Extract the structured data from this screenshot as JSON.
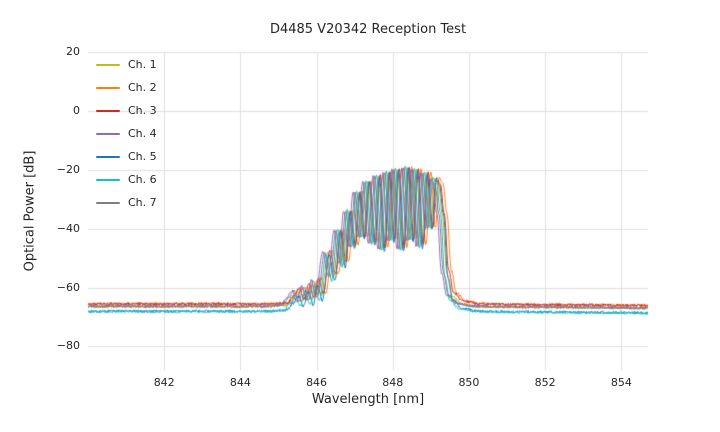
{
  "chart_data": {
    "type": "line",
    "title": "D4485 V20342 Reception Test",
    "xlabel": "Wavelength [nm]",
    "ylabel": "Optical Power [dB]",
    "xlim": [
      840.0,
      854.7
    ],
    "ylim": [
      -88,
      20
    ],
    "xticks": [
      842,
      844,
      846,
      848,
      850,
      852,
      854
    ],
    "yticks": [
      20,
      0,
      -20,
      -40,
      -60,
      -80
    ],
    "grid": true,
    "legend_position": "upper-left",
    "noise_floor_db": -66.5,
    "noise_amplitude_db": 0.45,
    "base_spectrum": [
      [
        840.0,
        -66.3
      ],
      [
        841.0,
        -66.2
      ],
      [
        842.0,
        -66.3
      ],
      [
        843.0,
        -66.2
      ],
      [
        844.0,
        -66.3
      ],
      [
        844.8,
        -66.2
      ],
      [
        845.2,
        -65.8
      ],
      [
        845.35,
        -63.5
      ],
      [
        845.5,
        -61.0
      ],
      [
        845.62,
        -64.5
      ],
      [
        845.75,
        -59.5
      ],
      [
        845.88,
        -64.0
      ],
      [
        846.0,
        -57.5
      ],
      [
        846.12,
        -62.5
      ],
      [
        846.3,
        -48.0
      ],
      [
        846.45,
        -56.0
      ],
      [
        846.6,
        -40.5
      ],
      [
        846.72,
        -52.0
      ],
      [
        846.85,
        -34.0
      ],
      [
        846.97,
        -46.0
      ],
      [
        847.1,
        -27.5
      ],
      [
        847.22,
        -43.0
      ],
      [
        847.35,
        -24.0
      ],
      [
        847.5,
        -45.0
      ],
      [
        847.62,
        -22.0
      ],
      [
        847.75,
        -47.0
      ],
      [
        847.88,
        -20.8
      ],
      [
        848.0,
        -44.0
      ],
      [
        848.12,
        -19.8
      ],
      [
        848.25,
        -47.0
      ],
      [
        848.38,
        -19.2
      ],
      [
        848.5,
        -44.0
      ],
      [
        848.62,
        -19.8
      ],
      [
        848.75,
        -46.0
      ],
      [
        848.88,
        -21.0
      ],
      [
        849.0,
        -40.0
      ],
      [
        849.1,
        -23.0
      ],
      [
        849.2,
        -25.0
      ],
      [
        849.3,
        -35.0
      ],
      [
        849.42,
        -55.0
      ],
      [
        849.55,
        -62.5
      ],
      [
        849.8,
        -65.3
      ],
      [
        850.2,
        -66.2
      ],
      [
        851.0,
        -66.4
      ],
      [
        852.0,
        -66.5
      ],
      [
        853.0,
        -66.6
      ],
      [
        854.0,
        -66.7
      ],
      [
        854.7,
        -66.8
      ]
    ],
    "series": [
      {
        "name": "Ch. 1",
        "color": "#bcbd22",
        "x_offset": 0.0,
        "y_offset": 0.0,
        "floor_offset": -0.2
      },
      {
        "name": "Ch. 2",
        "color": "#ff7f0e",
        "x_offset": 0.12,
        "y_offset": 0.3,
        "floor_offset": 0.4
      },
      {
        "name": "Ch. 3",
        "color": "#d62728",
        "x_offset": 0.05,
        "y_offset": 0.2,
        "floor_offset": 0.5
      },
      {
        "name": "Ch. 4",
        "color": "#9467bd",
        "x_offset": -0.14,
        "y_offset": 0.0,
        "floor_offset": 0.0
      },
      {
        "name": "Ch. 5",
        "color": "#1f77b4",
        "x_offset": 0.03,
        "y_offset": -0.2,
        "floor_offset": -1.6
      },
      {
        "name": "Ch. 6",
        "color": "#17becf",
        "x_offset": -0.05,
        "y_offset": 0.4,
        "floor_offset": -2.3
      },
      {
        "name": "Ch. 7",
        "color": "#7f7f7f",
        "x_offset": -0.09,
        "y_offset": -0.1,
        "floor_offset": -0.1
      }
    ],
    "grid_color": "#dfdfdf",
    "text_color": "#262626"
  }
}
